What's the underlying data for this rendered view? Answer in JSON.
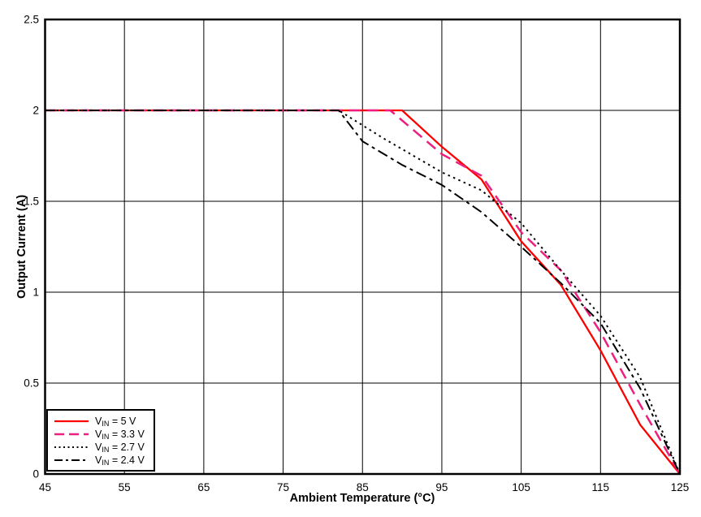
{
  "chart_data": {
    "type": "line",
    "title": "",
    "xlabel": "Ambient Temperature (°C)",
    "ylabel": "Output Current (A)",
    "xlim": [
      45,
      125
    ],
    "ylim": [
      0,
      2.5
    ],
    "xticks": [
      45,
      55,
      65,
      75,
      85,
      95,
      105,
      115,
      125
    ],
    "yticks": [
      0,
      0.5,
      1,
      1.5,
      2,
      2.5
    ],
    "ytick_labels": [
      "0",
      "0.5",
      "1",
      "1.5",
      "2",
      "2.5"
    ],
    "grid": true,
    "legend_position": "lower-left",
    "series": [
      {
        "name": "VIN = 5 V",
        "label_prefix": "V",
        "label_sub": "IN",
        "label_rest": " = 5 V",
        "color": "#ff0000",
        "style": "solid",
        "width": 2.3,
        "points": [
          [
            45,
            2
          ],
          [
            90,
            2
          ],
          [
            95,
            1.8
          ],
          [
            100,
            1.62
          ],
          [
            105,
            1.28
          ],
          [
            110,
            1.04
          ],
          [
            115,
            0.68
          ],
          [
            120,
            0.27
          ],
          [
            125,
            0
          ]
        ]
      },
      {
        "name": "VIN = 3.3 V",
        "label_prefix": "V",
        "label_sub": "IN",
        "label_rest": " = 3.3 V",
        "color": "#ed1f7f",
        "style": "long-dash",
        "width": 2.5,
        "points": [
          [
            45,
            2
          ],
          [
            88.5,
            2
          ],
          [
            95,
            1.76
          ],
          [
            100,
            1.64
          ],
          [
            105,
            1.33
          ],
          [
            110,
            1.12
          ],
          [
            115,
            0.78
          ],
          [
            120,
            0.38
          ],
          [
            125,
            0
          ]
        ]
      },
      {
        "name": "VIN = 2.7 V",
        "label_prefix": "V",
        "label_sub": "IN",
        "label_rest": " = 2.7 V",
        "color": "#000000",
        "style": "dotted",
        "width": 2,
        "points": [
          [
            45,
            2
          ],
          [
            82,
            2
          ],
          [
            87.5,
            1.85
          ],
          [
            95,
            1.66
          ],
          [
            100,
            1.56
          ],
          [
            105,
            1.38
          ],
          [
            110,
            1.12
          ],
          [
            115,
            0.87
          ],
          [
            120,
            0.53
          ],
          [
            125,
            0
          ]
        ]
      },
      {
        "name": "VIN = 2.4 V",
        "label_prefix": "V",
        "label_sub": "IN",
        "label_rest": " = 2.4 V",
        "color": "#000000",
        "style": "dash-dot",
        "width": 2,
        "points": [
          [
            45,
            2
          ],
          [
            82,
            2
          ],
          [
            85,
            1.83
          ],
          [
            90,
            1.7
          ],
          [
            95,
            1.59
          ],
          [
            100,
            1.44
          ],
          [
            105,
            1.25
          ],
          [
            110,
            1.05
          ],
          [
            115,
            0.83
          ],
          [
            120,
            0.47
          ],
          [
            125,
            0
          ]
        ]
      }
    ]
  }
}
